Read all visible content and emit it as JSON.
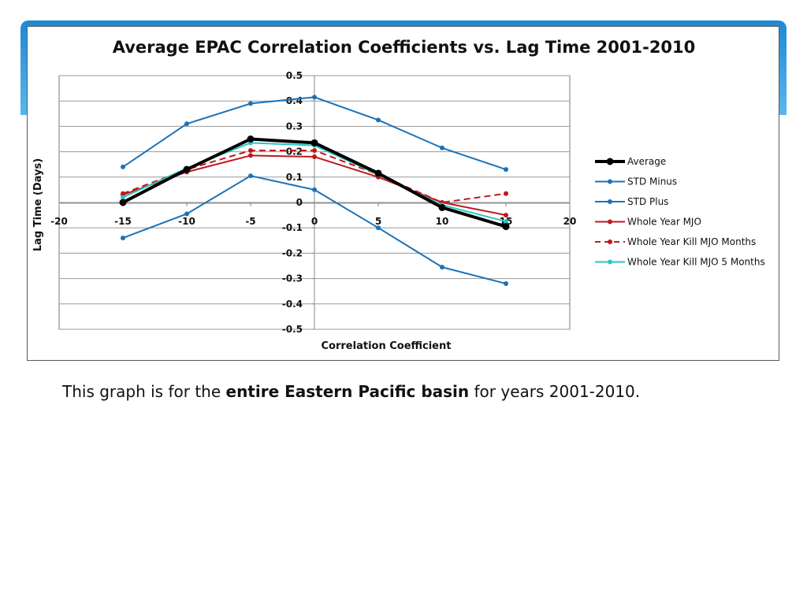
{
  "slide": {
    "caption_pre": "This graph is for the ",
    "caption_bold": "entire Eastern Pacific basin",
    "caption_post": " for years 2001-2010."
  },
  "colors": {
    "average": "#000000",
    "std_minus": "#1a72b8",
    "std_plus": "#1a72b8",
    "whole_year_mjo": "#c0181d",
    "kill_mjo_months": "#c0181d",
    "kill_mjo_5_months": "#2bc6c2",
    "accent_band": "#1e88d6"
  },
  "chart_data": {
    "type": "line",
    "title": "Average EPAC Correlation Coefficients vs. Lag Time 2001-2010",
    "xlabel": "Correlation Coefficient",
    "ylabel": "Lag Time (Days)",
    "xlim": [
      -20,
      20
    ],
    "ylim": [
      -0.5,
      0.5
    ],
    "x_ticks": [
      "-20",
      "-15",
      "-10",
      "-5",
      "0",
      "5",
      "10",
      "15",
      "20"
    ],
    "y_ticks": [
      "0.5",
      "0.4",
      "0.3",
      "0.2",
      "0.1",
      "0",
      "-0.1",
      "-0.2",
      "-0.3",
      "-0.4",
      "-0.5"
    ],
    "grid": "horizontal",
    "legend_position": "right",
    "series": [
      {
        "name": "Average",
        "style": "solid-thick",
        "color_key": "average",
        "x": [
          -15,
          -10,
          -5,
          0,
          5,
          10,
          15
        ],
        "y": [
          0.0,
          0.13,
          0.25,
          0.235,
          0.115,
          -0.02,
          -0.095
        ]
      },
      {
        "name": "STD Minus",
        "style": "solid",
        "color_key": "std_minus",
        "x": [
          -15,
          -10,
          -5,
          0,
          5,
          10,
          15
        ],
        "y": [
          0.14,
          0.31,
          0.39,
          0.415,
          0.325,
          0.215,
          0.13
        ]
      },
      {
        "name": "STD Plus",
        "style": "solid",
        "color_key": "std_plus",
        "x": [
          -15,
          -10,
          -5,
          0,
          5,
          10,
          15
        ],
        "y": [
          -0.14,
          -0.045,
          0.105,
          0.05,
          -0.1,
          -0.255,
          -0.32
        ]
      },
      {
        "name": "Whole Year MJO",
        "style": "solid",
        "color_key": "whole_year_mjo",
        "x": [
          -15,
          -10,
          -5,
          0,
          5,
          10,
          15
        ],
        "y": [
          0.03,
          0.12,
          0.185,
          0.18,
          0.1,
          0.0,
          -0.05
        ]
      },
      {
        "name": "Whole Year Kill MJO Months",
        "style": "dashed",
        "color_key": "kill_mjo_months",
        "x": [
          -15,
          -10,
          -5,
          0,
          5,
          10,
          15
        ],
        "y": [
          0.035,
          0.13,
          0.205,
          0.205,
          0.11,
          0.0,
          0.035
        ]
      },
      {
        "name": "Whole Year Kill MJO 5 Months",
        "style": "solid",
        "color_key": "kill_mjo_5_months",
        "x": [
          -15,
          -10,
          -5,
          0,
          5,
          10,
          15
        ],
        "y": [
          0.02,
          0.135,
          0.235,
          0.225,
          0.11,
          -0.01,
          -0.075
        ]
      }
    ]
  }
}
